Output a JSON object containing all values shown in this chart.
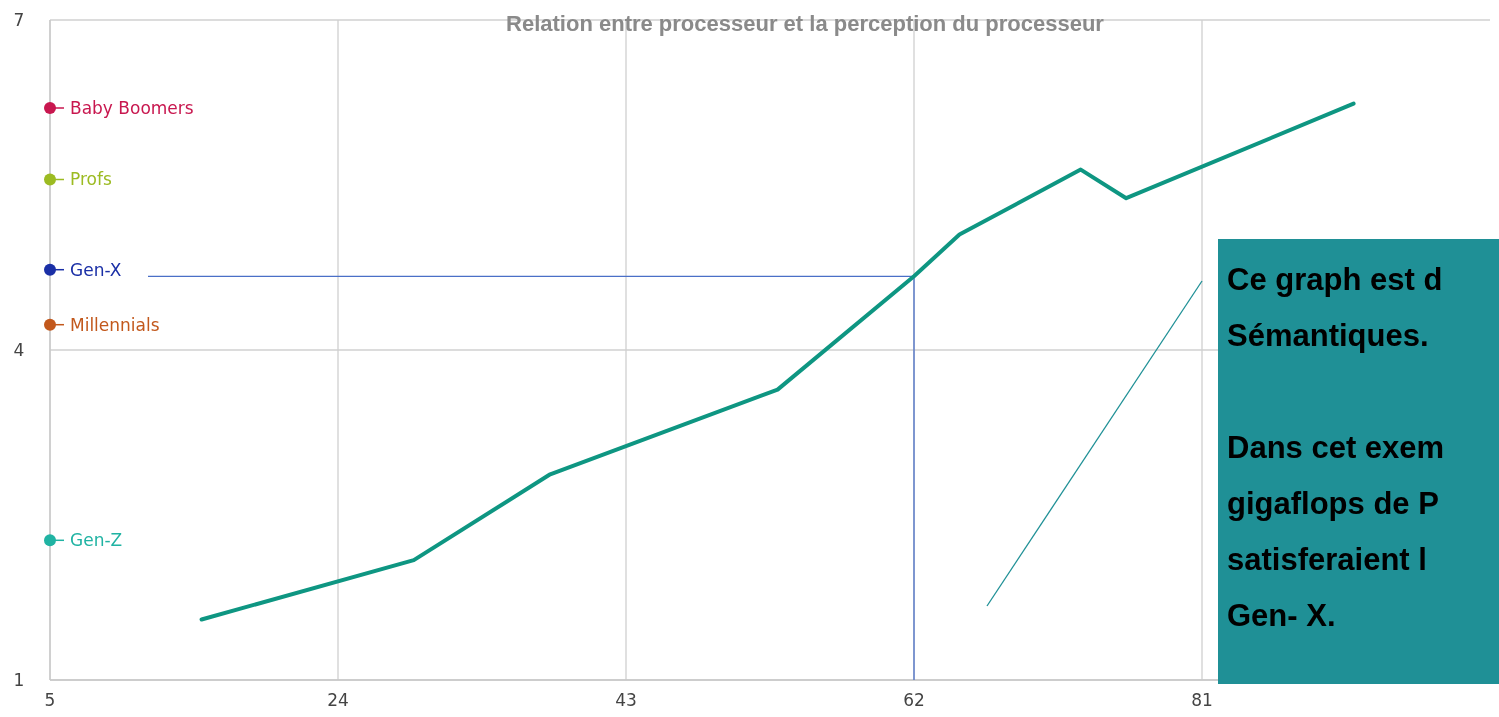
{
  "chart_data": {
    "type": "line",
    "title": "Relation entre processeur et la perception du processeur",
    "xlim": [
      5,
      100
    ],
    "xticks": [
      5,
      24,
      43,
      62,
      81
    ],
    "ylim": [
      1,
      7
    ],
    "yticks": [
      1,
      4,
      7
    ],
    "grid": true,
    "line_style": "solid",
    "series": [
      {
        "marker": "none",
        "color": "#0e9682",
        "x": [
          15,
          29,
          38,
          53,
          62,
          65,
          73,
          76,
          91
        ],
        "values": [
          1.55,
          2.09,
          2.87,
          3.64,
          4.67,
          5.05,
          5.64,
          5.38,
          6.24
        ]
      },
      {
        "type": "scatter",
        "marker": "circle",
        "name": "Baby Boomers",
        "color": "#c8174f",
        "x": [
          5
        ],
        "values": [
          6.2
        ]
      },
      {
        "type": "scatter",
        "marker": "circle",
        "name": "Profs",
        "color": "#9cbb22",
        "x": [
          5
        ],
        "values": [
          5.55
        ]
      },
      {
        "type": "scatter",
        "marker": "circle",
        "name": "Gen-X",
        "color": "#1a2fa6",
        "x": [
          5
        ],
        "values": [
          4.73
        ]
      },
      {
        "type": "scatter",
        "marker": "circle",
        "name": "Millennials",
        "color": "#c2581c",
        "x": [
          5
        ],
        "values": [
          4.23
        ]
      },
      {
        "type": "scatter",
        "marker": "circle",
        "name": "Gen-Z",
        "color": "#20b3a3",
        "x": [
          5
        ],
        "values": [
          2.27
        ]
      }
    ],
    "ref_lines": [
      {
        "axis": "x",
        "value": 62,
        "color": "#4a6fc7"
      },
      {
        "axis": "y",
        "value": 4.67,
        "color": "#4a6fc7"
      }
    ],
    "annotations": [
      "Ce graph est d\nSémantiques.\n\nDans cet exem\ngigaflops de P\nsatisferaient l\nGen- X."
    ]
  }
}
